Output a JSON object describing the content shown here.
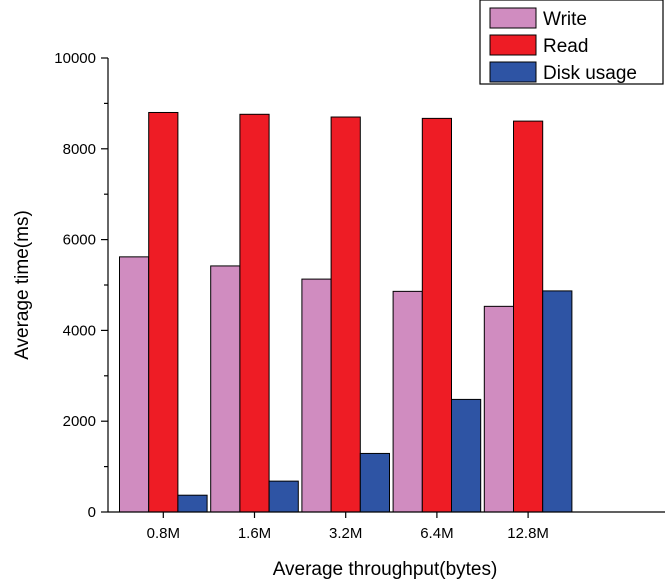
{
  "chart_data": {
    "type": "bar",
    "xlabel": "Average throughput(bytes)",
    "ylabel": "Average time(ms)",
    "categories": [
      "0.8M",
      "1.6M",
      "3.2M",
      "6.4M",
      "12.8M"
    ],
    "ylim": [
      0,
      10000
    ],
    "yticks": [
      0,
      2000,
      4000,
      6000,
      8000,
      10000
    ],
    "legend_position": "top-right",
    "series": [
      {
        "name": "Write",
        "color": "#d08cc0",
        "values": [
          5620,
          5420,
          5130,
          4860,
          4530
        ]
      },
      {
        "name": "Read",
        "color": "#ee1c25",
        "values": [
          8800,
          8760,
          8700,
          8670,
          8610
        ]
      },
      {
        "name": "Disk usage",
        "color": "#2e54a4",
        "values": [
          370,
          680,
          1290,
          2480,
          4870
        ]
      }
    ]
  }
}
